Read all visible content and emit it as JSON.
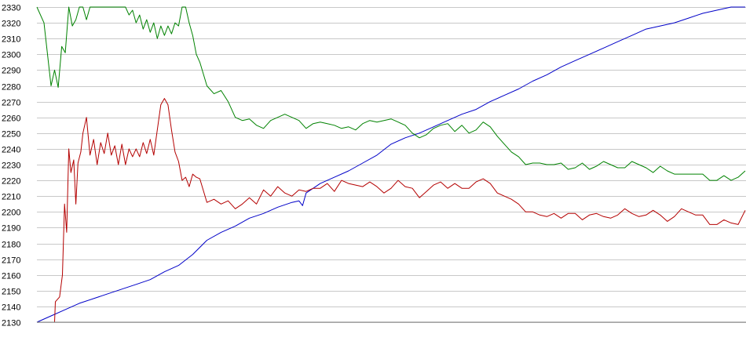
{
  "chart_data": {
    "type": "line",
    "title": "",
    "xlabel": "",
    "ylabel": "",
    "ylim": [
      2130,
      2330
    ],
    "yticks": [
      2130,
      2140,
      2150,
      2160,
      2170,
      2180,
      2190,
      2200,
      2210,
      2220,
      2230,
      2240,
      2250,
      2260,
      2270,
      2280,
      2290,
      2300,
      2310,
      2320,
      2330
    ],
    "xlim": [
      0,
      100
    ],
    "grid": true,
    "legend": "none",
    "series": [
      {
        "color": "#0000c8",
        "x": [
          0,
          2,
          4,
          6,
          8,
          10,
          12,
          14,
          16,
          18,
          20,
          22,
          24,
          26,
          28,
          30,
          32,
          34,
          36,
          37,
          37.5,
          38,
          39,
          40,
          42,
          44,
          46,
          48,
          50,
          52,
          54,
          56,
          58,
          60,
          62,
          64,
          66,
          68,
          70,
          72,
          74,
          76,
          78,
          80,
          82,
          84,
          86,
          88,
          90,
          92,
          94,
          96,
          98,
          100
        ],
        "values": [
          2130,
          2134,
          2138,
          2142,
          2145,
          2148,
          2151,
          2154,
          2157,
          2162,
          2166,
          2173,
          2182,
          2187,
          2191,
          2196,
          2199,
          2203,
          2206,
          2207,
          2204,
          2212,
          2215,
          2218,
          2222,
          2226,
          2231,
          2236,
          2243,
          2247,
          2250,
          2254,
          2258,
          2262,
          2265,
          2270,
          2274,
          2278,
          2283,
          2287,
          2292,
          2296,
          2300,
          2304,
          2308,
          2312,
          2316,
          2318,
          2320,
          2323,
          2326,
          2328,
          2330,
          2331
        ]
      },
      {
        "color": "#b40000",
        "x": [
          0,
          2.5,
          2.6,
          3.2,
          3.6,
          3.9,
          4.2,
          4.5,
          4.8,
          5.2,
          5.5,
          5.8,
          6.2,
          6.5,
          7,
          7.5,
          8,
          8.5,
          9,
          9.5,
          10,
          10.5,
          11,
          11.5,
          12,
          12.5,
          13,
          13.5,
          14,
          14.5,
          15,
          15.5,
          16,
          16.5,
          17,
          17.5,
          18,
          18.5,
          19,
          19.5,
          20,
          20.5,
          21,
          21.5,
          22,
          22.5,
          23,
          24,
          25,
          26,
          27,
          28,
          29,
          30,
          31,
          32,
          33,
          34,
          35,
          36,
          37,
          38,
          39,
          40,
          41,
          42,
          43,
          44,
          45,
          46,
          47,
          48,
          49,
          50,
          51,
          52,
          53,
          54,
          55,
          56,
          57,
          58,
          59,
          60,
          61,
          62,
          63,
          64,
          65,
          66,
          67,
          68,
          69,
          70,
          71,
          72,
          73,
          74,
          75,
          76,
          77,
          78,
          79,
          80,
          81,
          82,
          83,
          84,
          85,
          86,
          87,
          88,
          89,
          90,
          91,
          92,
          93,
          94,
          95,
          96,
          97,
          98,
          99,
          100
        ],
        "values": [
          2130,
          2130,
          2143,
          2146,
          2160,
          2205,
          2187,
          2240,
          2225,
          2233,
          2205,
          2231,
          2238,
          2250,
          2260,
          2236,
          2246,
          2230,
          2244,
          2237,
          2250,
          2236,
          2242,
          2230,
          2243,
          2230,
          2240,
          2235,
          2240,
          2235,
          2244,
          2237,
          2246,
          2236,
          2252,
          2268,
          2272,
          2268,
          2252,
          2238,
          2232,
          2220,
          2222,
          2216,
          2224,
          2222,
          2221,
          2206,
          2208,
          2205,
          2207,
          2202,
          2205,
          2209,
          2205,
          2214,
          2210,
          2216,
          2212,
          2210,
          2214,
          2213,
          2215,
          2215,
          2218,
          2213,
          2220,
          2218,
          2217,
          2216,
          2219,
          2216,
          2212,
          2215,
          2220,
          2216,
          2215,
          2209,
          2213,
          2217,
          2219,
          2215,
          2218,
          2215,
          2215,
          2219,
          2221,
          2218,
          2212,
          2210,
          2208,
          2205,
          2200,
          2200,
          2198,
          2197,
          2199,
          2196,
          2199,
          2199,
          2195,
          2198,
          2199,
          2197,
          2196,
          2198,
          2202,
          2199,
          2197,
          2198,
          2201,
          2198,
          2194,
          2197,
          2202,
          2200,
          2198,
          2198,
          2192,
          2192,
          2195,
          2193,
          2192,
          2201
        ]
      },
      {
        "color": "#008200",
        "x": [
          0,
          1,
          1.5,
          2,
          2.5,
          3,
          3.5,
          4,
          4.5,
          5,
          5.5,
          6,
          6.5,
          7,
          7.5,
          8,
          8.5,
          9,
          9.5,
          10,
          10.5,
          11,
          11.5,
          12,
          12.5,
          13,
          13.5,
          14,
          14.5,
          15,
          15.5,
          16,
          16.5,
          17,
          17.5,
          18,
          18.5,
          19,
          19.5,
          20,
          20.5,
          21,
          21.5,
          22,
          22.5,
          23,
          24,
          25,
          26,
          27,
          28,
          29,
          30,
          31,
          32,
          33,
          34,
          35,
          36,
          37,
          38,
          39,
          40,
          41,
          42,
          43,
          44,
          45,
          46,
          47,
          48,
          49,
          50,
          51,
          52,
          53,
          54,
          55,
          56,
          57,
          58,
          59,
          60,
          61,
          62,
          63,
          64,
          65,
          66,
          67,
          68,
          69,
          70,
          71,
          72,
          73,
          74,
          75,
          76,
          77,
          78,
          79,
          80,
          81,
          82,
          83,
          84,
          85,
          86,
          87,
          88,
          89,
          90,
          91,
          92,
          93,
          94,
          95,
          96,
          97,
          98,
          99,
          100
        ],
        "values": [
          2330,
          2320,
          2300,
          2280,
          2290,
          2279,
          2305,
          2301,
          2330,
          2318,
          2322,
          2330,
          2330,
          2322,
          2330,
          2330,
          2330,
          2330,
          2330,
          2330,
          2330,
          2330,
          2330,
          2330,
          2330,
          2325,
          2328,
          2320,
          2325,
          2316,
          2322,
          2314,
          2320,
          2310,
          2318,
          2312,
          2318,
          2313,
          2320,
          2318,
          2330,
          2330,
          2320,
          2312,
          2300,
          2295,
          2280,
          2275,
          2277,
          2270,
          2260,
          2258,
          2259,
          2255,
          2253,
          2258,
          2260,
          2262,
          2260,
          2258,
          2253,
          2256,
          2257,
          2256,
          2255,
          2253,
          2254,
          2252,
          2256,
          2258,
          2257,
          2258,
          2259,
          2257,
          2255,
          2250,
          2247,
          2249,
          2253,
          2255,
          2256,
          2251,
          2255,
          2250,
          2252,
          2257,
          2254,
          2248,
          2243,
          2238,
          2235,
          2230,
          2231,
          2231,
          2230,
          2230,
          2231,
          2227,
          2228,
          2231,
          2227,
          2229,
          2232,
          2230,
          2228,
          2228,
          2232,
          2230,
          2228,
          2225,
          2229,
          2226,
          2224,
          2224,
          2224,
          2224,
          2224,
          2220,
          2220,
          2223,
          2220,
          2222,
          2226
        ]
      }
    ]
  }
}
